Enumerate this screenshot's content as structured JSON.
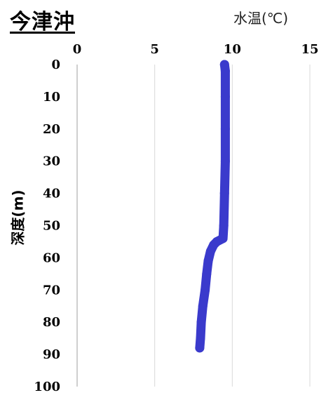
{
  "chart_data": {
    "type": "line",
    "title": "今津沖",
    "xlabel": "水温(℃)",
    "ylabel": "深度(m)",
    "x_axis": {
      "position": "top",
      "range": [
        0,
        15
      ],
      "ticks": [
        "0",
        "5",
        "10",
        "15"
      ]
    },
    "y_axis": {
      "inverted": true,
      "range": [
        0,
        100
      ],
      "ticks": [
        "0",
        "10",
        "20",
        "30",
        "40",
        "50",
        "60",
        "70",
        "80",
        "90",
        "100"
      ]
    },
    "grid": "vertical",
    "series": [
      {
        "color": "#3a3acc",
        "points": [
          {
            "temp": 9.5,
            "depth": 0
          },
          {
            "temp": 9.55,
            "depth": 2
          },
          {
            "temp": 9.55,
            "depth": 10
          },
          {
            "temp": 9.55,
            "depth": 20
          },
          {
            "temp": 9.55,
            "depth": 30
          },
          {
            "temp": 9.5,
            "depth": 40
          },
          {
            "temp": 9.45,
            "depth": 50
          },
          {
            "temp": 9.4,
            "depth": 54
          },
          {
            "temp": 9.0,
            "depth": 55
          },
          {
            "temp": 8.8,
            "depth": 56
          },
          {
            "temp": 8.6,
            "depth": 58
          },
          {
            "temp": 8.45,
            "depth": 61
          },
          {
            "temp": 8.35,
            "depth": 65
          },
          {
            "temp": 8.25,
            "depth": 70
          },
          {
            "temp": 8.1,
            "depth": 75
          },
          {
            "temp": 8.0,
            "depth": 80
          },
          {
            "temp": 7.95,
            "depth": 85
          },
          {
            "temp": 7.9,
            "depth": 88
          }
        ]
      }
    ]
  }
}
